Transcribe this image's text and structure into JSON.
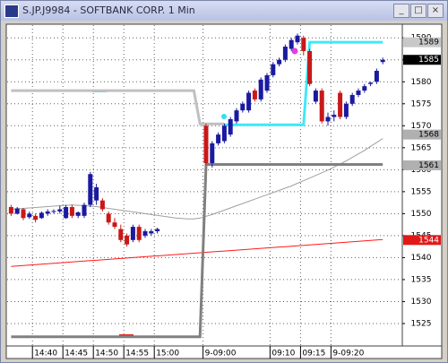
{
  "window": {
    "title": "S.JP.J9984 - SOFTBANK CORP. 1 Min"
  },
  "chart_data": {
    "type": "candlestick",
    "categories": [
      null,
      null,
      null,
      null,
      "14:40",
      null,
      null,
      null,
      null,
      "14:45",
      null,
      null,
      null,
      null,
      "14:50",
      null,
      null,
      null,
      null,
      "14:55",
      null,
      null,
      null,
      null,
      "15:00",
      null,
      null,
      null,
      null,
      null,
      null,
      null,
      "9-09:00",
      null,
      null,
      null,
      null,
      null,
      null,
      null,
      null,
      null,
      null,
      "09:10",
      null,
      null,
      null,
      null,
      "09:15",
      null,
      null,
      null,
      null,
      "9-09:20",
      null,
      null,
      null,
      null,
      null,
      null,
      null,
      null
    ],
    "open": [
      1551.5,
      1550.0,
      1551.0,
      1549.2,
      1549.5,
      1549.0,
      1550.0,
      1550.5,
      1550.5,
      1549.0,
      1551.5,
      1549.5,
      1549.5,
      1552.0,
      1553.0,
      1553.0,
      1550.0,
      1548.0,
      1546.5,
      1545.0,
      1544.0,
      1547.0,
      1545.0,
      1545.5,
      1546.0,
      null,
      null,
      null,
      null,
      null,
      null,
      null,
      1570.0,
      1561.5,
      1566.0,
      1566.5,
      1568.0,
      1571.0,
      1573.5,
      1573.5,
      1578.0,
      1576.0,
      1578.0,
      1581.5,
      1584.0,
      1585.0,
      1587.5,
      1589.0,
      1590.0,
      1587.0,
      1575.5,
      1578.0,
      1571.0,
      1572.0,
      1577.5,
      1572.0,
      1575.0,
      1577.0,
      1578.0,
      1579.5,
      1580.0,
      1584.5
    ],
    "high": [
      1552.0,
      1551.5,
      1551.3,
      1550.5,
      1550.0,
      1550.5,
      1551.0,
      1551.0,
      1551.8,
      1552.0,
      1552.0,
      1550.5,
      1552.5,
      1559.5,
      1556.8,
      1553.5,
      1550.5,
      1549.0,
      1547.5,
      1545.5,
      1547.5,
      1547.5,
      1546.5,
      1546.5,
      1546.8,
      null,
      null,
      null,
      null,
      null,
      null,
      null,
      1570.5,
      1566.5,
      1568.5,
      1570.5,
      1572.0,
      1574.0,
      1575.5,
      1578.0,
      1578.5,
      1581.0,
      1582.0,
      1584.5,
      1585.5,
      1588.5,
      1590.0,
      1591.0,
      1590.5,
      1587.5,
      1578.5,
      1578.5,
      1573.0,
      1573.5,
      1578.0,
      1575.5,
      1577.5,
      1578.5,
      1579.5,
      1580.0,
      1583.0,
      1585.5
    ],
    "low": [
      1549.5,
      1549.8,
      1548.5,
      1548.8,
      1548.0,
      1548.8,
      1549.5,
      1550.0,
      1550.0,
      1548.8,
      1549.0,
      1549.0,
      1549.0,
      1551.5,
      1552.0,
      1550.5,
      1547.5,
      1546.5,
      1543.5,
      1542.5,
      1543.5,
      1543.5,
      1544.5,
      1545.0,
      1545.5,
      null,
      null,
      null,
      null,
      null,
      null,
      null,
      1561.0,
      1560.5,
      1565.5,
      1566.0,
      1567.5,
      1570.5,
      1573.0,
      1573.0,
      1575.5,
      1575.5,
      1577.5,
      1581.0,
      1583.5,
      1584.5,
      1587.0,
      1588.5,
      1586.0,
      1579.0,
      1575.0,
      1570.5,
      1570.0,
      1571.0,
      1571.5,
      1571.5,
      1574.5,
      1576.5,
      1577.5,
      1579.0,
      1579.5,
      1584.0
    ],
    "close": [
      1550.0,
      1551.2,
      1549.0,
      1550.0,
      1548.6,
      1550.2,
      1550.5,
      1550.6,
      1551.0,
      1551.5,
      1549.5,
      1550.3,
      1552.0,
      1559.0,
      1556.0,
      1551.0,
      1548.0,
      1547.0,
      1544.0,
      1543.0,
      1547.0,
      1544.0,
      1546.0,
      1546.0,
      1546.5,
      null,
      null,
      null,
      null,
      null,
      null,
      null,
      1561.5,
      1566.0,
      1568.0,
      1570.0,
      1571.5,
      1573.5,
      1575.0,
      1577.5,
      1576.0,
      1580.5,
      1581.5,
      1584.0,
      1585.0,
      1588.0,
      1589.5,
      1590.5,
      1587.0,
      1579.5,
      1578.0,
      1571.0,
      1572.0,
      1572.5,
      1572.0,
      1575.0,
      1577.0,
      1578.0,
      1579.0,
      1579.8,
      1582.5,
      1585.0
    ],
    "up_color": "#1a1aa0",
    "down_color": "#c81818",
    "overlays": [
      {
        "color": "#ff1a1a",
        "values": [
          1538.0,
          1538.1,
          1538.2,
          1538.3,
          1538.4,
          1538.5,
          1538.6,
          1538.7,
          1538.8,
          1538.9,
          1539.0,
          1539.1,
          1539.2,
          1539.3,
          1539.4,
          1539.5,
          1539.6,
          1539.7,
          1539.8,
          1539.9,
          1540.0,
          1540.1,
          1540.2,
          1540.3,
          1540.4,
          1540.5,
          1540.6,
          1540.7,
          1540.8,
          1540.9,
          1541.0,
          1541.1,
          1541.2,
          1541.3,
          1541.4,
          1541.5,
          1541.6,
          1541.7,
          1541.8,
          1541.9,
          1542.0,
          1542.1,
          1542.2,
          1542.3,
          1542.4,
          1542.5,
          1542.6,
          1542.7,
          1542.8,
          1542.9,
          1543.0,
          1543.1,
          1543.2,
          1543.3,
          1543.4,
          1543.5,
          1543.6,
          1543.7,
          1543.8,
          1543.9,
          1544.0,
          1544.1
        ]
      },
      {
        "color": "#a0a0a0",
        "values": [
          1551.0,
          1551.1,
          1551.2,
          1551.3,
          1551.4,
          1551.5,
          1551.6,
          1551.7,
          1551.8,
          1551.9,
          1552.0,
          1551.9,
          1551.8,
          1551.7,
          1551.6,
          1551.4,
          1551.2,
          1551.0,
          1550.8,
          1550.6,
          1550.4,
          1550.2,
          1550.0,
          1549.8,
          1549.6,
          1549.4,
          1549.2,
          1549.0,
          1548.9,
          1548.8,
          1548.8,
          1549.0,
          1549.4,
          1549.8,
          1550.3,
          1550.8,
          1551.3,
          1551.8,
          1552.3,
          1552.8,
          1553.3,
          1553.8,
          1554.3,
          1554.8,
          1555.3,
          1555.8,
          1556.3,
          1556.9,
          1557.5,
          1558.1,
          1558.7,
          1559.3,
          1559.9,
          1560.6,
          1561.3,
          1562.0,
          1562.8,
          1563.6,
          1564.4,
          1565.3,
          1566.2,
          1567.1
        ]
      },
      {
        "color": "#c0c0c0",
        "values": [
          1578,
          1578,
          1578,
          1578,
          1578,
          1578,
          1578,
          1578,
          1578,
          1578,
          1578,
          1578,
          1578,
          1578,
          1578,
          1578,
          1578,
          1578,
          1578,
          1578,
          1578,
          1578,
          1578,
          1578,
          1578,
          1578,
          1578,
          1578,
          1578,
          1578,
          1578,
          1570.4,
          1570.4,
          1570.4,
          1570.4,
          1570.4,
          null,
          null,
          null,
          null,
          null,
          null,
          null,
          null,
          null,
          null,
          null,
          null,
          null,
          null,
          null,
          null,
          null,
          null,
          null,
          null,
          null,
          null,
          null,
          null,
          null,
          null
        ]
      },
      {
        "color": "#808080",
        "values": [
          1522,
          1522,
          1522,
          1522,
          1522,
          1522,
          1522,
          1522,
          1522,
          1522,
          1522,
          1522,
          1522,
          1522,
          1522,
          1522,
          1522,
          1522,
          1522,
          1522,
          1522,
          1522,
          1522,
          1522,
          1522,
          1522,
          1522,
          1522,
          1522,
          1522,
          1522,
          1522,
          1561.2,
          1561.2,
          1561.2,
          1561.2,
          1561.2,
          1561.2,
          1561.2,
          1561.2,
          1561.2,
          1561.2,
          1561.2,
          1561.2,
          1561.2,
          1561.2,
          1561.2,
          1561.2,
          1561.2,
          1561.2,
          1561.2,
          1561.2,
          1561.2,
          1561.2,
          1561.2,
          1561.2,
          1561.2,
          1561.2,
          1561.2,
          1561.2,
          1561.2,
          1561.2
        ]
      },
      {
        "color": "#40e8f8",
        "values": [
          null,
          null,
          null,
          null,
          null,
          null,
          null,
          null,
          null,
          null,
          null,
          null,
          null,
          null,
          null,
          null,
          null,
          null,
          null,
          null,
          null,
          null,
          null,
          null,
          null,
          null,
          null,
          null,
          null,
          null,
          null,
          null,
          null,
          null,
          null,
          1570.2,
          1570.2,
          1570.2,
          1570.2,
          1570.2,
          1570.2,
          1570.2,
          1570.2,
          1570.2,
          1570.2,
          1570.2,
          1570.2,
          1570.2,
          1570.2,
          1589,
          1589,
          1589,
          1589,
          1589,
          1589,
          1589,
          1589,
          1589,
          1589,
          1589,
          1589,
          1589
        ]
      }
    ],
    "ylim": [
      1520.1,
      1592.9
    ],
    "yticks": [
      1525,
      1530,
      1535,
      1540,
      1545,
      1550,
      1555,
      1560,
      1565,
      1570,
      1575,
      1580,
      1585,
      1590
    ],
    "grid": true,
    "price_tags": [
      {
        "value": 1589,
        "bg": "#c8c8c8",
        "fg": "#000000"
      },
      {
        "value": 1585,
        "bg": "#000000",
        "fg": "#ffffff"
      },
      {
        "value": 1568,
        "bg": "#b0b0b0",
        "fg": "#000000"
      },
      {
        "value": 1561,
        "bg": "#b0b0b0",
        "fg": "#000000"
      },
      {
        "value": 1544,
        "bg": "#e01818",
        "fg": "#ffffff"
      }
    ]
  }
}
